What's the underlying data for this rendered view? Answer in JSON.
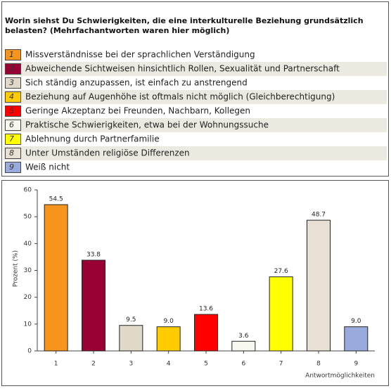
{
  "chart_data": {
    "type": "bar",
    "title_lines": [
      "Worin siehst Du Schwierigkeiten, die eine interkulturelle Beziehung grundsätzlich",
      "belasten? (Mehrfachantworten waren hier möglich)"
    ],
    "legend": [
      {
        "number": "1",
        "label": "Missverständnisse bei der sprachlichen Verständigung"
      },
      {
        "number": "2",
        "label": "Abweichende Sichtweisen hinsichtlich Rollen, Sexualität und Partnerschaft"
      },
      {
        "number": "3",
        "label": "Sich ständig anzupassen, ist einfach zu anstrengend"
      },
      {
        "number": "4",
        "label": "Beziehung auf Augenhöhe ist oftmals nicht möglich (Gleichberechtigung)"
      },
      {
        "number": "5",
        "label": "Geringe Akzeptanz bei Freunden, Nachbarn, Kollegen"
      },
      {
        "number": "6",
        "label": "Praktische Schwierigkeiten, etwa bei der Wohnungssuche"
      },
      {
        "number": "7",
        "label": "Ablehnung durch Partnerfamilie"
      },
      {
        "number": "8",
        "label": "Unter Umständen religiöse Differenzen"
      },
      {
        "number": "9",
        "label": "Weiß nicht"
      }
    ],
    "categories": [
      "1",
      "2",
      "3",
      "4",
      "5",
      "6",
      "7",
      "8",
      "9"
    ],
    "values": [
      54.5,
      33.8,
      9.5,
      9.0,
      13.6,
      3.6,
      27.6,
      48.7,
      9.0
    ],
    "value_labels": [
      "54.5",
      "33.8",
      "9.5",
      "9.0",
      "13.6",
      "3.6",
      "27.6",
      "48.7",
      "9.0"
    ],
    "colors": [
      "#f7941d",
      "#990033",
      "#e0d8c8",
      "#ffcc00",
      "#ff0000",
      "#f8f8f0",
      "#ffff00",
      "#e8e0d4",
      "#99aadd"
    ],
    "ylabel": "Prozent (%)",
    "xlabel": "Antwortmöglichkeiten",
    "ylim": [
      0,
      60
    ],
    "yticks": [
      0,
      10,
      20,
      30,
      40,
      50,
      60
    ]
  }
}
